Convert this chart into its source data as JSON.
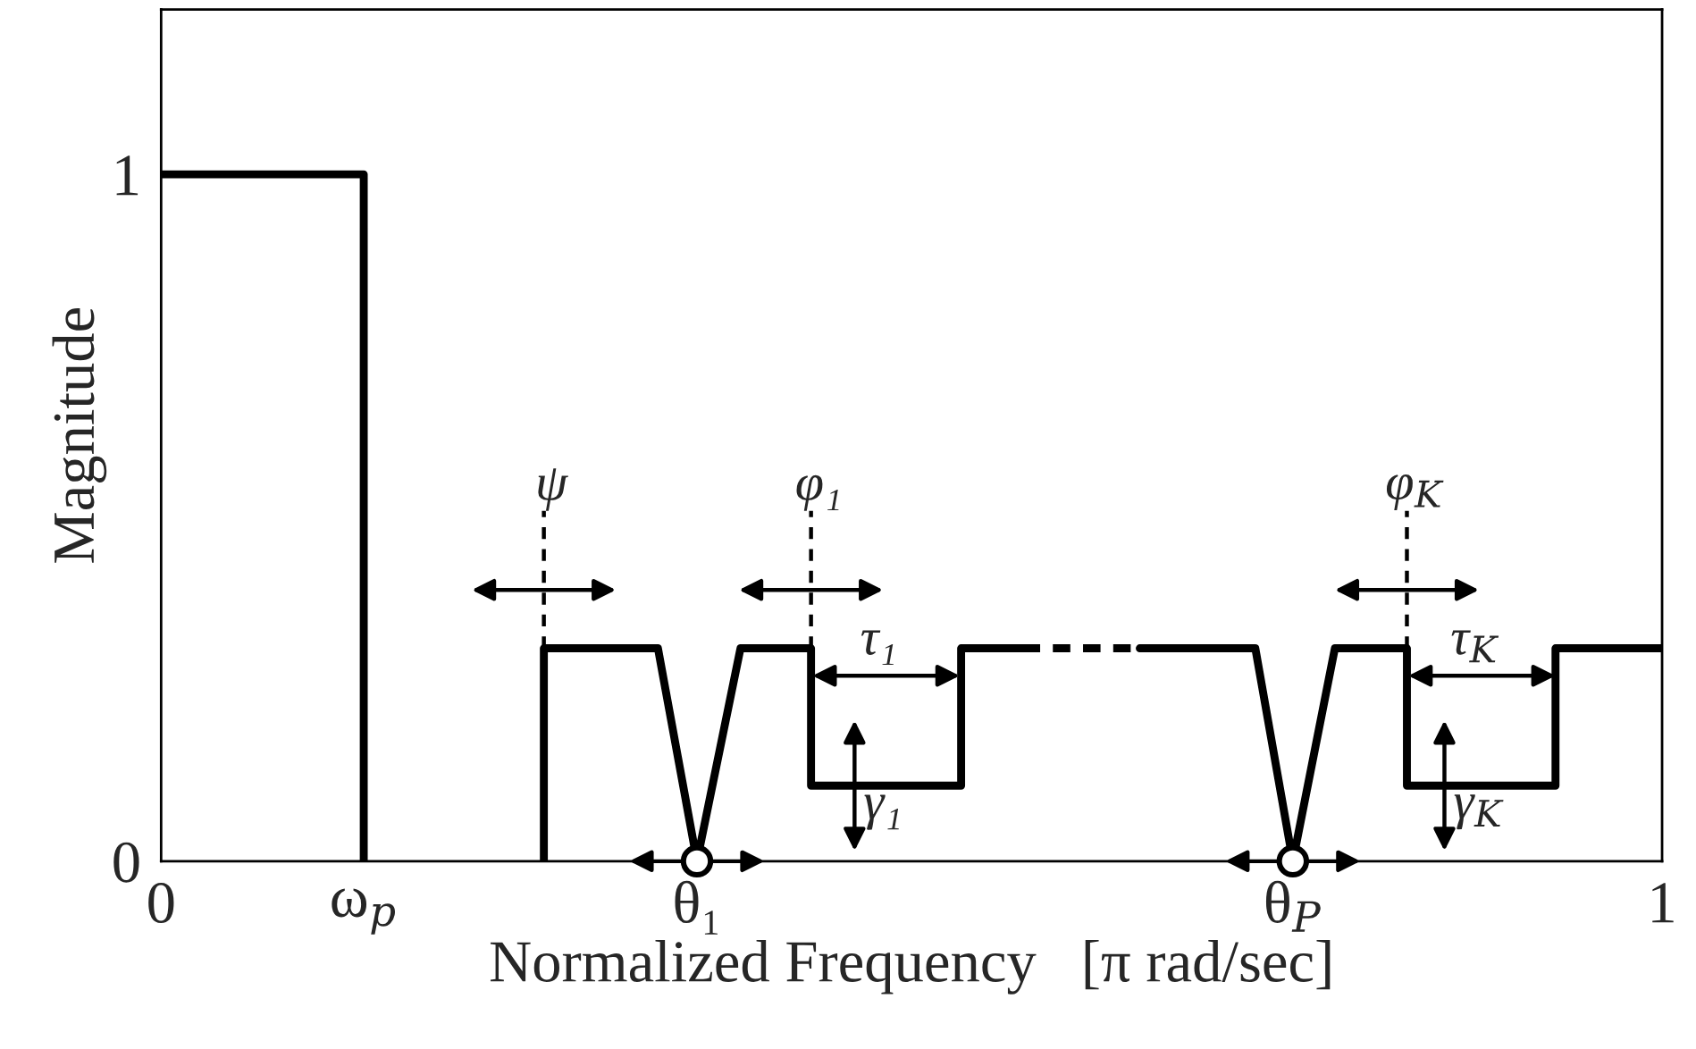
{
  "chart_data": {
    "type": "line",
    "xlabel": "Normalized Frequency   [π rad/sec]",
    "ylabel": "Magnitude",
    "xlim": [
      0,
      1
    ],
    "ylim": [
      0,
      1.24
    ],
    "xticks": [
      0,
      {
        "value": 0.135,
        "label": "ω$_{p}$"
      },
      {
        "value": 0.357,
        "label": "θ₁"
      },
      {
        "value": 0.754,
        "label": "θ$_{P}$"
      },
      1
    ],
    "yticks": [
      0,
      1
    ],
    "grid": false,
    "legend": false,
    "marker": "none",
    "series": [
      {
        "color": "#000000",
        "x": [
          0,
          0.135,
          0.135
        ],
        "values": [
          1,
          1,
          0
        ]
      },
      {
        "color": "#000000",
        "x": [
          0.255,
          0.255,
          0.331,
          0.357,
          0.386,
          0.433,
          0.433,
          0.533,
          0.533,
          0.574
        ],
        "values": [
          0,
          0.31,
          0.31,
          0,
          0.31,
          0.31,
          0.11,
          0.11,
          0.31,
          0.31
        ]
      },
      {
        "color": "#000000",
        "line_style": "dashed",
        "x": [
          0.574,
          0.652
        ],
        "values": [
          0.31,
          0.31
        ]
      },
      {
        "color": "#000000",
        "x": [
          0.652,
          0.729,
          0.754,
          0.782,
          0.83,
          0.83,
          0.929,
          0.929,
          1
        ],
        "values": [
          0.31,
          0.31,
          0,
          0.31,
          0.31,
          0.11,
          0.11,
          0.31,
          0.31
        ]
      },
      {
        "type": "scatter",
        "color": "#000000",
        "marker": "circle",
        "x": [
          0.357,
          0.754
        ],
        "values": [
          0,
          0
        ]
      }
    ],
    "annotations": [
      {
        "text": "ψ",
        "x": 0.255,
        "y": 0.31
      },
      {
        "text": "φ₁",
        "x": 0.433,
        "y": 0.31
      },
      {
        "text": "φ$_{K}$",
        "x": 0.83,
        "y": 0.31
      },
      {
        "text": "τ₁",
        "x": 0.483,
        "y": 0.11
      },
      {
        "text": "τ$_{K}$",
        "x": 0.88,
        "y": 0.11
      },
      {
        "text": "γ₁",
        "x": 0.462,
        "y": 0.11
      },
      {
        "text": "γ$_{K}$",
        "x": 0.855,
        "y": 0.11
      }
    ]
  }
}
